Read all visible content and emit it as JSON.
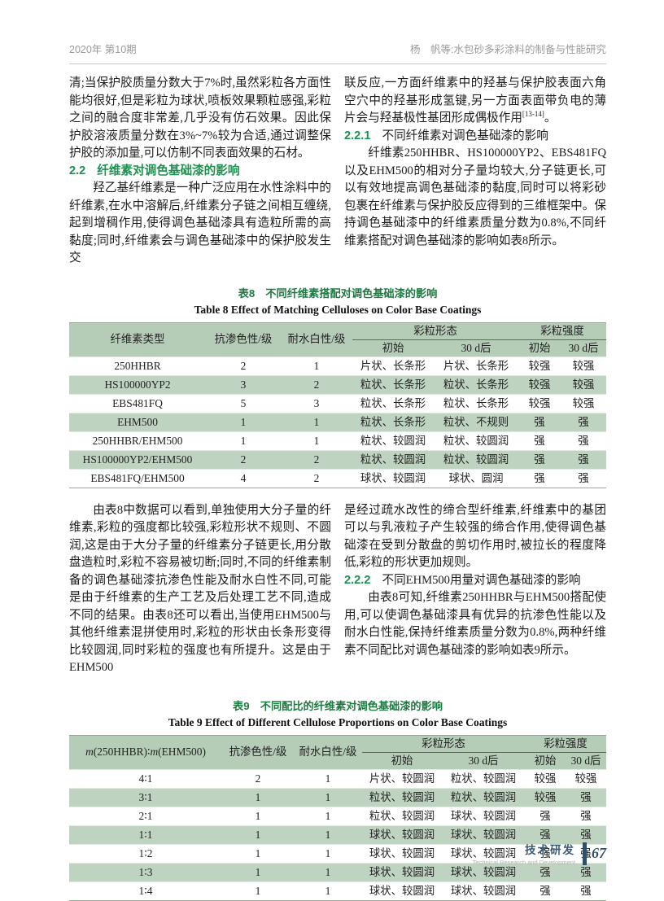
{
  "colors": {
    "heading_green": "#1e9150",
    "caption_green": "#1d7a40",
    "table_header_bg": "#b5ccb7",
    "table_stripe_bg": "#bed3c0",
    "footer_navy": "#2f4f6b",
    "header_gray": "#9b9b9b"
  },
  "header": {
    "issue": "2020年 第10期",
    "running_title": "杨　帆等:水包砂多彩涂料的制备与性能研究"
  },
  "article": {
    "left_top": {
      "p1": "清;当保护胶质量分数大于7%时,虽然彩粒各方面性能均很好,但是彩粒为球状,喷板效果颗粒感强,彩粒之间的融合度非常差,几乎没有仿石效果。因此保护胶溶液质量分数在3%~7%较为合适,通过调整保护胶的添加量,可以仿制不同表面效果的石材。",
      "h22_num": "2.2",
      "h22_title": "纤维素对调色基础漆的影响",
      "p2": "羟乙基纤维素是一种广泛应用在水性涂料中的纤维素,在水中溶解后,纤维素分子链之间相互缠绕,起到增稠作用,使得调色基础漆具有造粒所需的高黏度;同时,纤维素会与调色基础漆中的保护胶发生交"
    },
    "right_top": {
      "p1_main": "联反应,一方面纤维素中的羟基与保护胶表面六角空穴中的羟基形成氢键,另一方面表面带负电的薄片会与羟基极性基团形成偶极作用",
      "p1_ref": "[13-14]",
      "p1_end": "。",
      "h221_num": "2.2.1",
      "h221_title": "不同纤维素对调色基础漆的影响",
      "p2": "纤维素250HHBR、HS100000YP2、EBS481FQ以及EHM500的相对分子量均较大,分子链更长,可以有效地提高调色基础漆的黏度,同时可以将彩砂包裹在纤维素与保护胶反应得到的三维框架中。保持调色基础漆中的纤维素质量分数为0.8%,不同纤维素搭配对调色基础漆的影响如表8所示。"
    },
    "left_mid": {
      "p1": "由表8中数据可以看到,单独使用大分子量的纤维素,彩粒的强度都比较强,彩粒形状不规则、不圆润,这是由于大分子量的纤维素分子链更长,用分散盘造粒时,彩粒不容易被切断;同时,不同的纤维素制备的调色基础漆抗渗色性能及耐水白性不同,可能是由于纤维素的生产工艺及后处理工艺不同,造成不同的结果。由表8还可以看出,当使用EHM500与其他纤维素混拼使用时,彩粒的形状由长条形变得比较圆润,同时彩粒的强度也有所提升。这是由于EHM500"
    },
    "right_mid": {
      "p1": "是经过疏水改性的缔合型纤维素,纤维素中的基团可以与乳液粒子产生较强的缔合作用,使得调色基础漆在受到分散盘的剪切作用时,被拉长的程度降低,彩粒的形状更加规则。",
      "h222_num": "2.2.2",
      "h222_title": "不同EHM500用量对调色基础漆的影响",
      "p2": "由表8可知,纤维素250HHBR与EHM500搭配使用,可以使调色基础漆具有优异的抗渗色性能以及耐水白性能,保持纤维素质量分数为0.8%,两种纤维素不同配比对调色基础漆的影响如表9所示。"
    }
  },
  "table8": {
    "caption_cn": "表8　不同纤维素搭配对调色基础漆的影响",
    "caption_en": "Table 8   Effect of Matching Celluloses on Color Base Coatings",
    "headers": {
      "col1": "纤维素类型",
      "col2": "抗渗色性/级",
      "col3": "耐水白性/级",
      "group_morphology": "彩粒形态",
      "group_strength": "彩粒强度",
      "sub_initial": "初始",
      "sub_30d": "30 d后"
    },
    "rows": [
      [
        "250HHBR",
        "2",
        "1",
        "片状、长条形",
        "片状、长条形",
        "较强",
        "较强"
      ],
      [
        "HS100000YP2",
        "3",
        "2",
        "粒状、长条形",
        "粒状、长条形",
        "较强",
        "较强"
      ],
      [
        "EBS481FQ",
        "5",
        "3",
        "粒状、长条形",
        "粒状、长条形",
        "较强",
        "较强"
      ],
      [
        "EHM500",
        "1",
        "1",
        "粒状、长条形",
        "粒状、不规则",
        "强",
        "强"
      ],
      [
        "250HHBR/EHM500",
        "1",
        "1",
        "粒状、较圆润",
        "粒状、较圆润",
        "强",
        "强"
      ],
      [
        "HS100000YP2/EHM500",
        "2",
        "2",
        "粒状、较圆润",
        "粒状、较圆润",
        "强",
        "强"
      ],
      [
        "EBS481FQ/EHM500",
        "4",
        "2",
        "球状、较圆润",
        "球状、圆润",
        "强",
        "强"
      ]
    ]
  },
  "table9": {
    "caption_cn": "表9　不同配比的纤维素对调色基础漆的影响",
    "caption_en": "Table 9   Effect of Different Cellulose Proportions on Color Base Coatings",
    "headers": {
      "col1_m1": "m",
      "col1_p1": "(250HHBR)∶",
      "col1_m2": "m",
      "col1_p2": "(EHM500)",
      "col2": "抗渗色性/级",
      "col3": "耐水白性/级",
      "group_morphology": "彩粒形态",
      "group_strength": "彩粒强度",
      "sub_initial": "初始",
      "sub_30d": "30 d后"
    },
    "rows": [
      [
        "4∶1",
        "2",
        "1",
        "片状、较圆润",
        "粒状、较圆润",
        "较强",
        "较强"
      ],
      [
        "3∶1",
        "1",
        "1",
        "粒状、较圆润",
        "粒状、较圆润",
        "较强",
        "强"
      ],
      [
        "2∶1",
        "1",
        "1",
        "粒状、较圆润",
        "球状、较圆润",
        "强",
        "强"
      ],
      [
        "1∶1",
        "1",
        "1",
        "球状、较圆润",
        "球状、较圆润",
        "强",
        "强"
      ],
      [
        "1∶2",
        "1",
        "1",
        "球状、较圆润",
        "球状、较圆润",
        "强",
        "强"
      ],
      [
        "1∶3",
        "1",
        "1",
        "球状、较圆润",
        "球状、较圆润",
        "强",
        "强"
      ],
      [
        "1∶4",
        "1",
        "1",
        "球状、较圆润",
        "球状、较圆润",
        "强",
        "强"
      ]
    ]
  },
  "footer": {
    "section_cn": "技术研发",
    "section_en": "Technical Research and Development",
    "page_number": "67"
  }
}
